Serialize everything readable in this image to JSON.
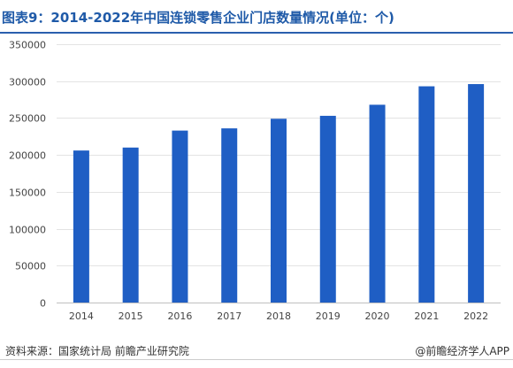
{
  "title": "图表9：2014-2022年中国连锁零售企业门店数量情况(单位：个)",
  "source": "资料来源：国家统计局 前瞻产业研究院",
  "brand": "@前瞻经济学人APP",
  "colors": {
    "bar": "#1f5ec4",
    "title": "#1f5aa8",
    "rule": "#2a5fae"
  },
  "chart_data": {
    "type": "bar",
    "categories": [
      "2014",
      "2015",
      "2016",
      "2017",
      "2018",
      "2019",
      "2020",
      "2021",
      "2022"
    ],
    "values": [
      206000,
      210000,
      233000,
      236000,
      249000,
      253000,
      268000,
      293000,
      296000
    ],
    "ylim": [
      0,
      350000
    ],
    "yticks": [
      0,
      50000,
      100000,
      150000,
      200000,
      250000,
      300000,
      350000
    ],
    "ytick_labels": [
      "0",
      "50000",
      "100000",
      "150000",
      "200000",
      "250000",
      "300000",
      "350000"
    ],
    "grid": true,
    "legend": "none"
  }
}
